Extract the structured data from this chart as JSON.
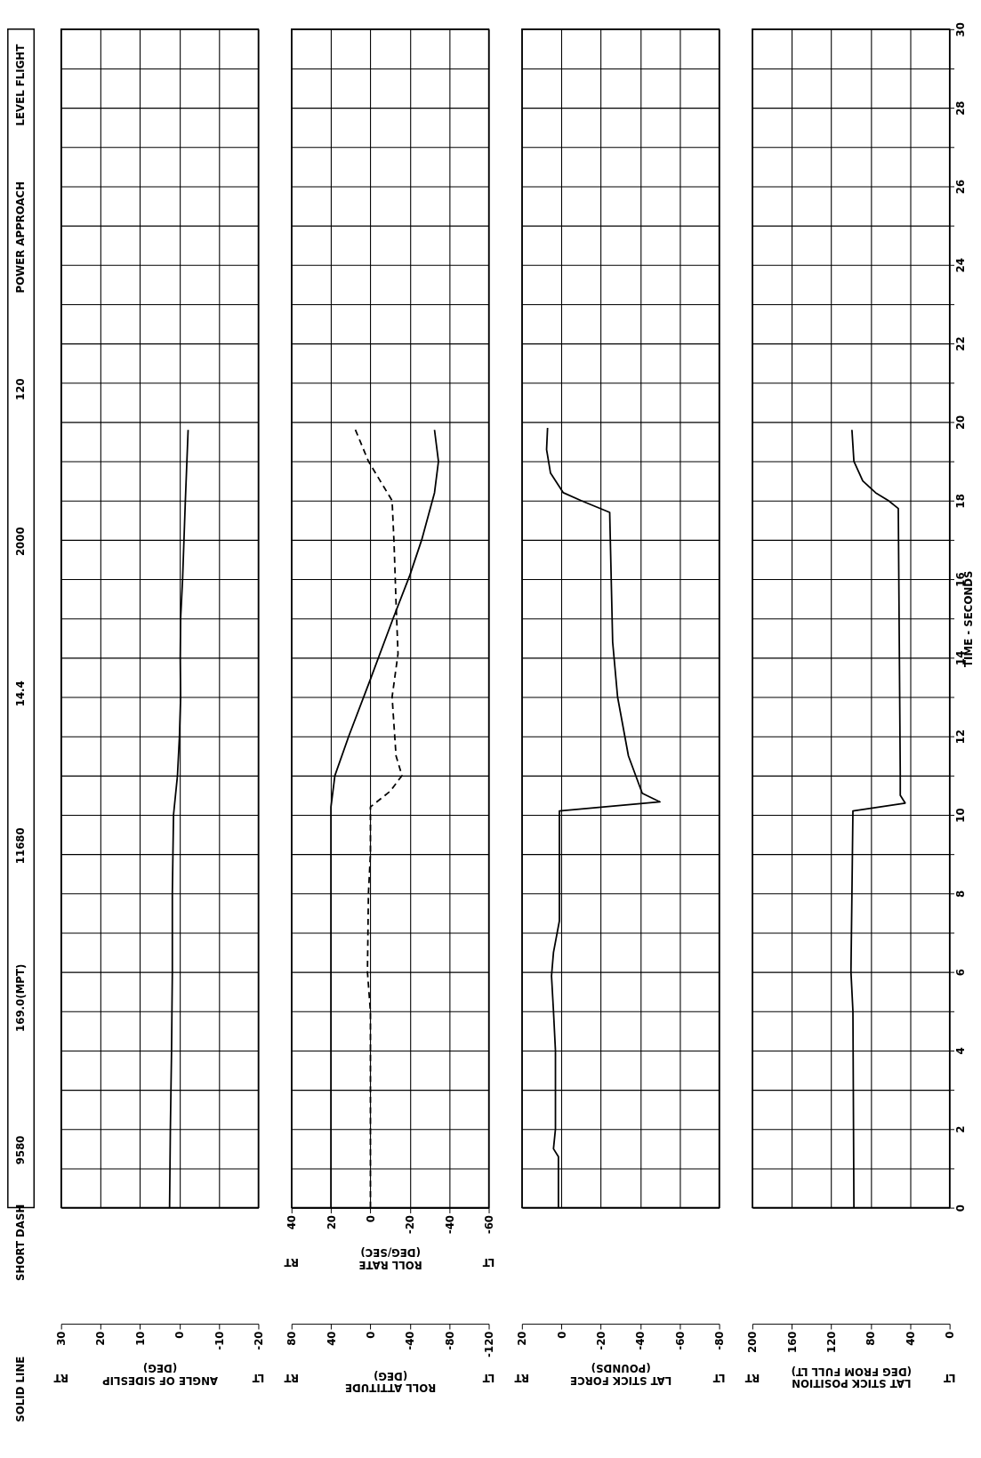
{
  "chart_data": [
    {
      "type": "other",
      "annotations": [
        "SOLID LINE",
        "SHORT DASH",
        "9580",
        "169.0(MPT)",
        "11680",
        "14.4",
        "2000",
        "120",
        "POWER APPROACH",
        "LEVEL FLIGHT"
      ]
    },
    {
      "type": "line",
      "xlabel": "ANGLE OF SIDESLIP\n(DEG)",
      "annotations": [
        "RT",
        "LT"
      ],
      "ylim": [
        0,
        30
      ],
      "yticks": [
        0,
        {
          "value": 1,
          "label": null
        },
        2,
        {
          "value": 3,
          "label": null
        },
        4,
        {
          "value": 5,
          "label": null
        },
        6,
        {
          "value": 7,
          "label": null
        },
        8,
        {
          "value": 9,
          "label": null
        },
        10,
        {
          "value": 11,
          "label": null
        },
        12,
        {
          "value": 13,
          "label": null
        },
        14,
        {
          "value": 15,
          "label": null
        },
        16,
        {
          "value": 17,
          "label": null
        },
        18,
        {
          "value": 19,
          "label": null
        },
        20,
        {
          "value": 21,
          "label": null
        },
        22,
        {
          "value": 23,
          "label": null
        },
        24,
        {
          "value": 25,
          "label": null
        },
        26,
        {
          "value": 27,
          "label": null
        },
        28,
        {
          "value": 29,
          "label": null
        },
        30
      ],
      "xlim": [
        30,
        -20
      ],
      "xticks": [
        30,
        20,
        10,
        0,
        -10,
        -20
      ],
      "grid": true,
      "tick_labels": "x",
      "line_style": "solid",
      "series": [
        {
          "color": "#000000",
          "x": [
            2.5,
            2.3,
            2,
            1.8,
            1.8,
            1.5,
            0.5,
            0,
            -0.3,
            -0.2,
            -0.3,
            -0.8,
            -1.5,
            -2.2
          ],
          "values": [
            0,
            2,
            4,
            6,
            8,
            10,
            11,
            12,
            13,
            14,
            15,
            16,
            18,
            19.8
          ]
        }
      ]
    },
    {
      "type": "line",
      "xlabel": "ROLL ATTITUDE\n(DEG)",
      "x2label": "ROLL RATE\n(DEG/SEC)",
      "annotations": [
        "RT",
        "LT",
        "RT",
        "LT"
      ],
      "ylim": [
        0,
        30
      ],
      "yticks": [
        0,
        {
          "value": 1,
          "label": null
        },
        2,
        {
          "value": 3,
          "label": null
        },
        4,
        {
          "value": 5,
          "label": null
        },
        6,
        {
          "value": 7,
          "label": null
        },
        8,
        {
          "value": 9,
          "label": null
        },
        10,
        {
          "value": 11,
          "label": null
        },
        12,
        {
          "value": 13,
          "label": null
        },
        14,
        {
          "value": 15,
          "label": null
        },
        16,
        {
          "value": 17,
          "label": null
        },
        18,
        {
          "value": 19,
          "label": null
        },
        20,
        {
          "value": 21,
          "label": null
        },
        22,
        {
          "value": 23,
          "label": null
        },
        24,
        {
          "value": 25,
          "label": null
        },
        26,
        {
          "value": 27,
          "label": null
        },
        28,
        {
          "value": 29,
          "label": null
        },
        30
      ],
      "xlim": [
        80,
        -120
      ],
      "xticks": [
        80,
        40,
        0,
        -40,
        -80,
        -120
      ],
      "x2lim": [
        40,
        -60
      ],
      "x2ticks": [
        40,
        20,
        0,
        -20,
        -40,
        -60
      ],
      "grid": true,
      "tick_labels": "x",
      "series": [
        {
          "color": "#000000",
          "line_style": "solid",
          "x": [
            40,
            40,
            36,
            22,
            0,
            -23,
            -40,
            -52,
            -65,
            -69,
            -65
          ],
          "values": [
            0,
            10.2,
            11,
            12,
            13.45,
            15,
            16.1,
            17,
            18.2,
            19,
            19.8
          ]
        },
        {
          "color": "#000000",
          "line_style": "dashed",
          "axis": "x2",
          "x": [
            0,
            0,
            1.5,
            1,
            0,
            0,
            -10,
            -16,
            -13,
            -11,
            -14,
            -13,
            -12,
            -11,
            -5,
            1,
            8
          ],
          "values": [
            0,
            5,
            6,
            8,
            9,
            10.2,
            10.6,
            11,
            11.5,
            13,
            14.1,
            15.4,
            16.9,
            18,
            18.5,
            19,
            19.85
          ]
        }
      ]
    },
    {
      "type": "line",
      "xlabel": "LAT STICK FORCE\n(POUNDS)",
      "annotations": [
        "RT",
        "LT"
      ],
      "ylim": [
        0,
        30
      ],
      "yticks": [
        0,
        {
          "value": 1,
          "label": null
        },
        2,
        {
          "value": 3,
          "label": null
        },
        4,
        {
          "value": 5,
          "label": null
        },
        6,
        {
          "value": 7,
          "label": null
        },
        8,
        {
          "value": 9,
          "label": null
        },
        10,
        {
          "value": 11,
          "label": null
        },
        12,
        {
          "value": 13,
          "label": null
        },
        14,
        {
          "value": 15,
          "label": null
        },
        16,
        {
          "value": 17,
          "label": null
        },
        18,
        {
          "value": 19,
          "label": null
        },
        20,
        {
          "value": 21,
          "label": null
        },
        22,
        {
          "value": 23,
          "label": null
        },
        24,
        {
          "value": 25,
          "label": null
        },
        26,
        {
          "value": 27,
          "label": null
        },
        28,
        {
          "value": 29,
          "label": null
        },
        30
      ],
      "xlim": [
        20,
        -80
      ],
      "xticks": [
        20,
        0,
        -20,
        -40,
        -60,
        -80
      ],
      "grid": true,
      "tick_labels": "x",
      "line_style": "solid",
      "series": [
        {
          "color": "#000000",
          "x": [
            1.5,
            1.5,
            4,
            3,
            3,
            4,
            5,
            4,
            1,
            1,
            -50,
            -41,
            -34,
            -28.5,
            -26,
            -24.5,
            -10,
            -1,
            5.5,
            7.5,
            7
          ],
          "values": [
            0,
            1.3,
            1.5,
            2,
            4,
            5,
            5.9,
            6.5,
            7.3,
            10.1,
            10.33,
            10.55,
            11.5,
            13,
            14.4,
            17.7,
            18,
            18.2,
            18.7,
            19.3,
            19.85
          ]
        }
      ]
    },
    {
      "type": "line",
      "ylabel": "TIME - SECONDS",
      "xlabel": "LAT STICK POSITION\n(DEG FROM FULL LT)",
      "annotations": [
        "RT",
        "LT"
      ],
      "ylim": [
        0,
        30
      ],
      "yticks": [
        0,
        {
          "value": 1,
          "label": null
        },
        2,
        {
          "value": 3,
          "label": null
        },
        4,
        {
          "value": 5,
          "label": null
        },
        6,
        {
          "value": 7,
          "label": null
        },
        8,
        {
          "value": 9,
          "label": null
        },
        10,
        {
          "value": 11,
          "label": null
        },
        12,
        {
          "value": 13,
          "label": null
        },
        14,
        {
          "value": 15,
          "label": null
        },
        16,
        {
          "value": 17,
          "label": null
        },
        18,
        {
          "value": 19,
          "label": null
        },
        20,
        {
          "value": 21,
          "label": null
        },
        22,
        {
          "value": 23,
          "label": null
        },
        24,
        {
          "value": 25,
          "label": null
        },
        26,
        {
          "value": 27,
          "label": null
        },
        28,
        {
          "value": 29,
          "label": null
        },
        30
      ],
      "xlim": [
        200,
        0
      ],
      "xticks": [
        200,
        160,
        120,
        80,
        40,
        0
      ],
      "grid": true,
      "line_style": "solid",
      "series": [
        {
          "color": "#000000",
          "x": [
            97,
            98,
            100,
            99,
            98,
            45,
            50,
            50,
            52,
            62,
            75,
            88,
            97,
            99
          ],
          "values": [
            0,
            5,
            6,
            8,
            10.1,
            10.3,
            10.5,
            11,
            17.8,
            18,
            18.2,
            18.5,
            19,
            19.8
          ]
        }
      ]
    }
  ]
}
